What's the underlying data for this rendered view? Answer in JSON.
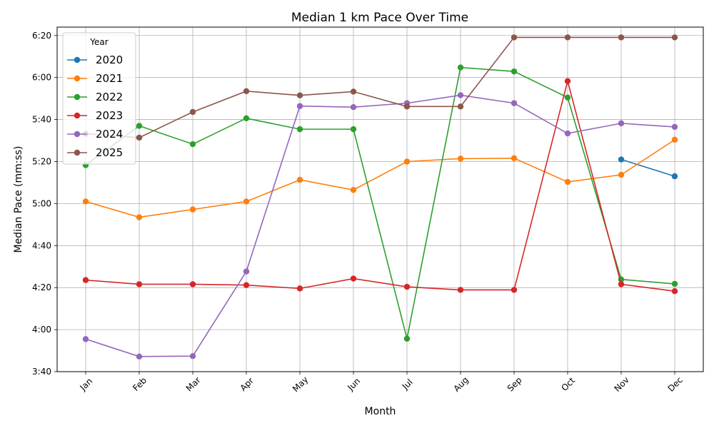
{
  "chart_data": {
    "type": "line",
    "title": "Median 1 km Pace Over Time",
    "xlabel": "Month",
    "ylabel": "Median Pace (mm:ss)",
    "categories": [
      "Jan",
      "Feb",
      "Mar",
      "Apr",
      "May",
      "Jun",
      "Jul",
      "Aug",
      "Sep",
      "Oct",
      "Nov",
      "Dec"
    ],
    "y_unit": "seconds per km",
    "ylim": [
      220,
      384
    ],
    "y_ticks": [
      {
        "value": 220,
        "label": "3:40"
      },
      {
        "value": 240,
        "label": "4:00"
      },
      {
        "value": 260,
        "label": "4:20"
      },
      {
        "value": 280,
        "label": "4:40"
      },
      {
        "value": 300,
        "label": "5:00"
      },
      {
        "value": 320,
        "label": "5:20"
      },
      {
        "value": 340,
        "label": "5:40"
      },
      {
        "value": 360,
        "label": "6:00"
      },
      {
        "value": 380,
        "label": "6:20"
      }
    ],
    "grid": true,
    "legend": {
      "title": "Year",
      "placement": "top-left"
    },
    "series": [
      {
        "name": "2020",
        "color": "#1f77b4",
        "values": [
          null,
          null,
          null,
          null,
          null,
          null,
          null,
          null,
          null,
          null,
          321,
          313
        ]
      },
      {
        "name": "2021",
        "color": "#ff7f0e",
        "values": [
          301,
          293.5,
          297.2,
          301,
          311.3,
          306.5,
          320,
          321.4,
          321.6,
          310.3,
          313.7,
          330.4
        ]
      },
      {
        "name": "2022",
        "color": "#2ca02c",
        "values": [
          318.3,
          337,
          328.3,
          340.6,
          335.4,
          335.4,
          235.7,
          364.8,
          362.9,
          350.5,
          263.9,
          261.8
        ]
      },
      {
        "name": "2023",
        "color": "#d62728",
        "values": [
          263.6,
          261.6,
          261.6,
          261.2,
          259.6,
          264.3,
          260.4,
          258.9,
          258.9,
          358.3,
          261.6,
          258.3
        ]
      },
      {
        "name": "2024",
        "color": "#9467bd",
        "values": [
          235.5,
          227.2,
          227.4,
          267.7,
          346.4,
          345.9,
          347.8,
          351.6,
          347.8,
          333.4,
          338.2,
          336.5
        ]
      },
      {
        "name": "2025",
        "color": "#8c564b",
        "values": [
          333.2,
          331.4,
          343.6,
          353.5,
          351.5,
          353.3,
          346.2,
          346.2,
          379.1,
          379.1,
          379.1,
          379.1
        ]
      }
    ]
  }
}
